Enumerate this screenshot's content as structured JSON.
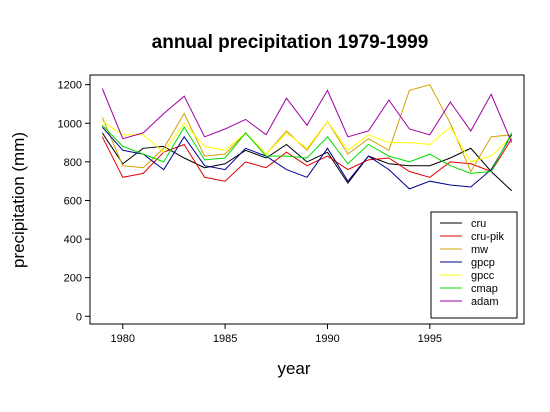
{
  "chart_data": {
    "type": "line",
    "title": "annual precipitation 1979-1999",
    "xlabel": "year",
    "ylabel": "precipitation (mm)",
    "xlim": [
      1978.4,
      1999.6
    ],
    "ylim": [
      -40,
      1250
    ],
    "x_ticks": [
      1980,
      1985,
      1990,
      1995
    ],
    "y_ticks": [
      0,
      200,
      400,
      600,
      800,
      1000,
      1200
    ],
    "x": [
      1979,
      1980,
      1981,
      1982,
      1983,
      1984,
      1985,
      1986,
      1987,
      1988,
      1989,
      1990,
      1991,
      1992,
      1993,
      1994,
      1995,
      1996,
      1997,
      1998,
      1999
    ],
    "legend_position": "bottom-right",
    "series": [
      {
        "name": "cru",
        "color": "#000000",
        "values": [
          950,
          790,
          870,
          880,
          820,
          770,
          790,
          860,
          820,
          890,
          800,
          850,
          690,
          830,
          790,
          780,
          780,
          820,
          870,
          750,
          650
        ]
      },
      {
        "name": "cru-pik",
        "color": "#e00000",
        "values": [
          930,
          720,
          740,
          850,
          890,
          720,
          700,
          800,
          770,
          850,
          780,
          830,
          760,
          810,
          820,
          750,
          720,
          800,
          790,
          750,
          920
        ]
      },
      {
        "name": "mw",
        "color": "#d4a000",
        "values": [
          1030,
          780,
          770,
          870,
          1050,
          830,
          840,
          950,
          840,
          960,
          860,
          1010,
          840,
          920,
          860,
          1170,
          1200,
          1000,
          750,
          930,
          940
        ]
      },
      {
        "name": "gpcp",
        "color": "#00008b",
        "values": [
          980,
          860,
          840,
          760,
          930,
          780,
          760,
          870,
          830,
          760,
          720,
          870,
          700,
          830,
          760,
          660,
          700,
          680,
          670,
          760,
          940
        ]
      },
      {
        "name": "gpcc",
        "color": "#ffff00",
        "values": [
          1010,
          940,
          940,
          850,
          1000,
          880,
          860,
          950,
          840,
          950,
          870,
          1010,
          860,
          940,
          900,
          900,
          890,
          980,
          800,
          830,
          930
        ]
      },
      {
        "name": "cmap",
        "color": "#00dd00",
        "values": [
          990,
          880,
          840,
          800,
          980,
          810,
          820,
          950,
          830,
          830,
          820,
          930,
          790,
          890,
          830,
          800,
          840,
          780,
          740,
          750,
          950
        ]
      },
      {
        "name": "adam",
        "color": "#a000a0",
        "values": [
          1180,
          920,
          950,
          1050,
          1140,
          930,
          970,
          1020,
          940,
          1130,
          990,
          1170,
          930,
          960,
          1120,
          970,
          940,
          1110,
          960,
          1150,
          900
        ]
      }
    ]
  }
}
